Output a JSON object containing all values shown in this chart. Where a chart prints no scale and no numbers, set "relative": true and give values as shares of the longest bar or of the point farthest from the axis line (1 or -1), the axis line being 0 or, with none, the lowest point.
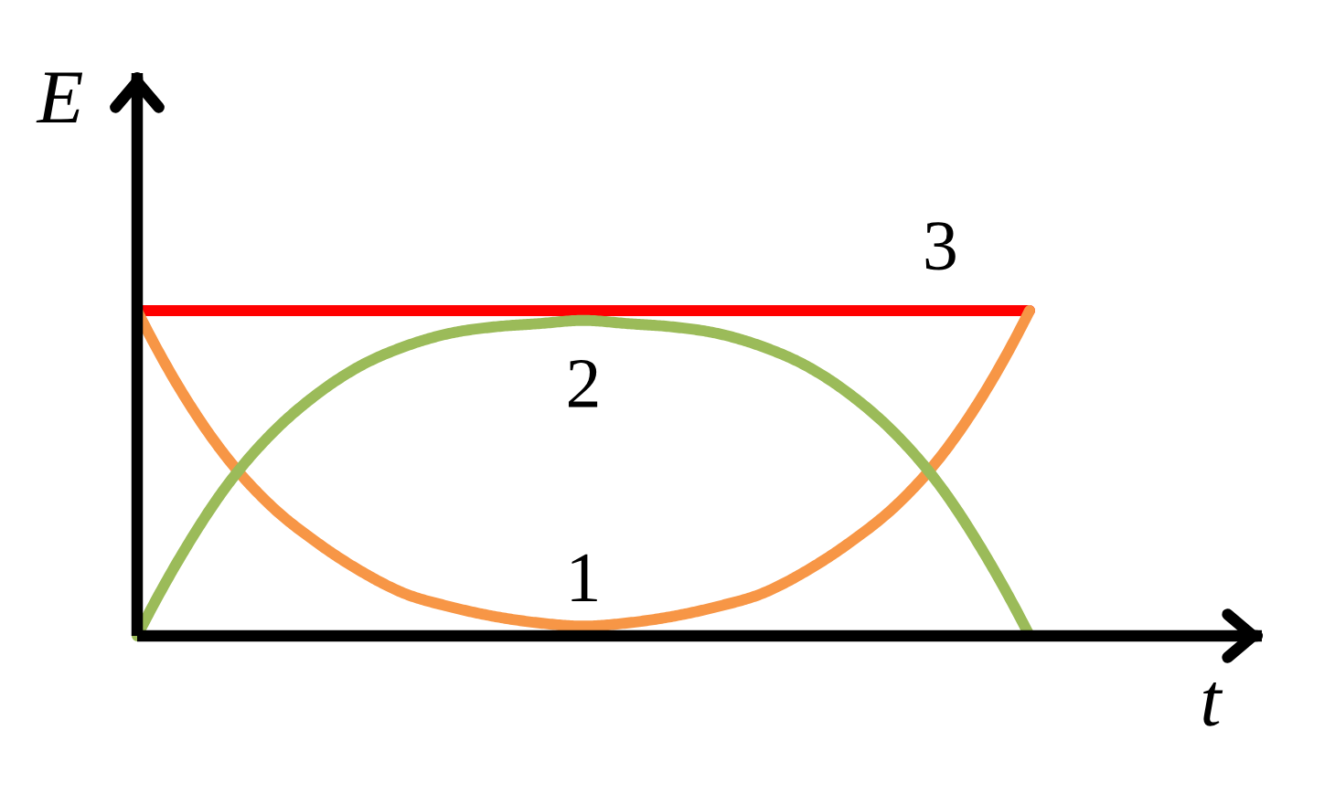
{
  "chart_data": {
    "type": "line",
    "relative": true,
    "xlabel": "t",
    "ylabel": "E",
    "marker": "none",
    "line_style": "solid",
    "categories": [
      null,
      null,
      null,
      null,
      null,
      null,
      null,
      null,
      null,
      null,
      null,
      null,
      null,
      null,
      null,
      null,
      null,
      null,
      null,
      null,
      null
    ],
    "series": [
      {
        "name": "3",
        "color": "#ff0000",
        "values": [
          1,
          1,
          1,
          1,
          1,
          1,
          1,
          1,
          1,
          1,
          1,
          1,
          1,
          1,
          1,
          1,
          1,
          1,
          1,
          1,
          1
        ]
      },
      {
        "name": "1",
        "color": "#f79646",
        "values": [
          1.0,
          0.75,
          0.55,
          0.4,
          0.29,
          0.2,
          0.13,
          0.09,
          0.06,
          0.04,
          0.03,
          0.04,
          0.06,
          0.09,
          0.13,
          0.2,
          0.29,
          0.4,
          0.55,
          0.75,
          1.0
        ]
      },
      {
        "name": "2",
        "color": "#9bbb59",
        "values": [
          0,
          0.25,
          0.46,
          0.62,
          0.74,
          0.83,
          0.89,
          0.93,
          0.95,
          0.96,
          0.97,
          0.96,
          0.95,
          0.93,
          0.89,
          0.83,
          0.74,
          0.62,
          0.46,
          0.25,
          0
        ]
      }
    ]
  }
}
